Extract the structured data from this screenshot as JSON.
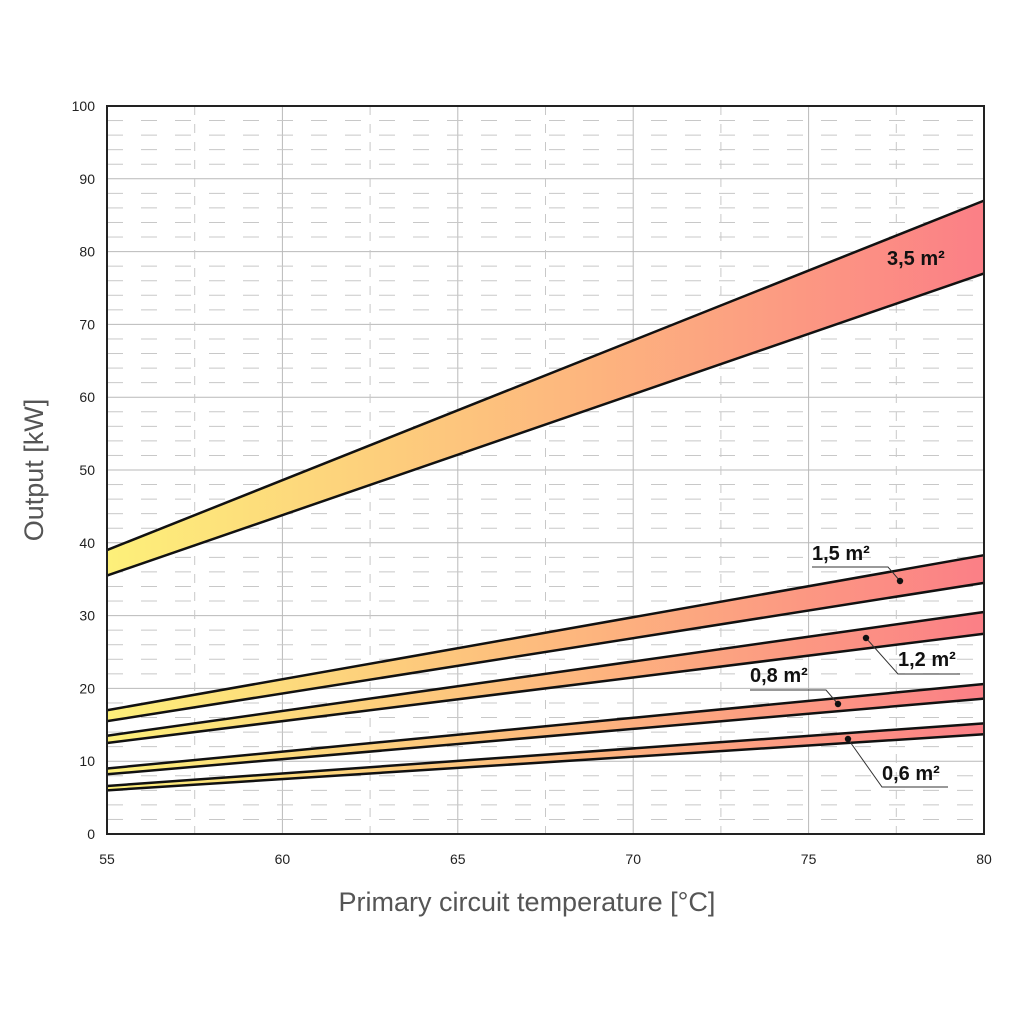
{
  "chart_data": {
    "type": "area",
    "xlabel": "Primary circuit temperature [°C]",
    "ylabel": "Output [kW]",
    "xlim": [
      55,
      80
    ],
    "ylim": [
      0,
      100
    ],
    "x_ticks": [
      "55",
      "60",
      "65",
      "70",
      "75",
      "80"
    ],
    "y_ticks": [
      "0",
      "10",
      "20",
      "30",
      "40",
      "50",
      "60",
      "70",
      "80",
      "90",
      "100"
    ],
    "grid": true,
    "gradient_colors": [
      "#fdf07a",
      "#fdb57e",
      "#fb7f86"
    ],
    "series": [
      {
        "name": "3,5 m²",
        "x": [
          55,
          80
        ],
        "lower": [
          35.5,
          77
        ],
        "upper": [
          39,
          87
        ]
      },
      {
        "name": "1,5 m²",
        "x": [
          55,
          80
        ],
        "lower": [
          15.5,
          34.5
        ],
        "upper": [
          17,
          38.3
        ]
      },
      {
        "name": "1,2 m²",
        "x": [
          55,
          80
        ],
        "lower": [
          12.5,
          27.5
        ],
        "upper": [
          13.5,
          30.5
        ]
      },
      {
        "name": "0,8 m²",
        "x": [
          55,
          80
        ],
        "lower": [
          8.2,
          18.6
        ],
        "upper": [
          9,
          20.6
        ]
      },
      {
        "name": "0,6 m²",
        "x": [
          55,
          80
        ],
        "lower": [
          6,
          13.7
        ],
        "upper": [
          6.6,
          15.2
        ]
      }
    ]
  }
}
